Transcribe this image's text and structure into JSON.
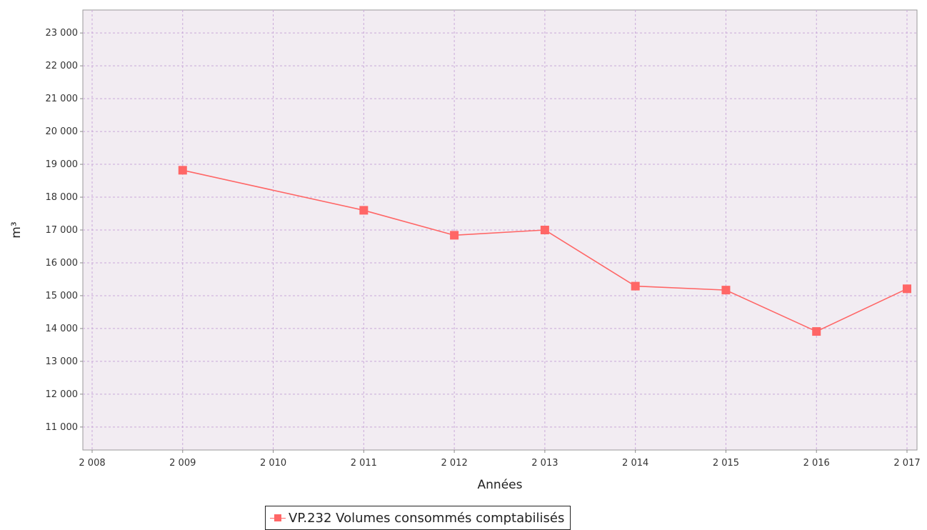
{
  "chart_data": {
    "type": "line",
    "xlabel": "Années",
    "ylabel": "m³",
    "x_tick_labels": [
      "2 008",
      "2 009",
      "2 010",
      "2 011",
      "2 012",
      "2 013",
      "2 014",
      "2 015",
      "2 016",
      "2 017"
    ],
    "y_tick_labels": [
      "11 000",
      "12 000",
      "13 000",
      "14 000",
      "15 000",
      "16 000",
      "17 000",
      "18 000",
      "19 000",
      "20 000",
      "21 000",
      "22 000",
      "23 000"
    ],
    "xlim": [
      2008,
      2017
    ],
    "ylim": [
      10300,
      23700
    ],
    "x_ticks": [
      2008,
      2009,
      2010,
      2011,
      2012,
      2013,
      2014,
      2015,
      2016,
      2017
    ],
    "y_ticks": [
      11000,
      12000,
      13000,
      14000,
      15000,
      16000,
      17000,
      18000,
      19000,
      20000,
      21000,
      22000,
      23000
    ],
    "grid": true,
    "legend_position": "bottom-center",
    "series": [
      {
        "name": "VP.232 Volumes consommés comptabilisés",
        "color": "#ff6666",
        "marker": "square",
        "x": [
          2009,
          2011,
          2012,
          2013,
          2014,
          2015,
          2016,
          2017
        ],
        "y": [
          18820,
          17600,
          16840,
          17000,
          15290,
          15170,
          13910,
          15210
        ]
      }
    ]
  },
  "colors": {
    "plot_background": "#f2ecf2",
    "grid": "#c9a9d9",
    "series": "#ff6666"
  }
}
